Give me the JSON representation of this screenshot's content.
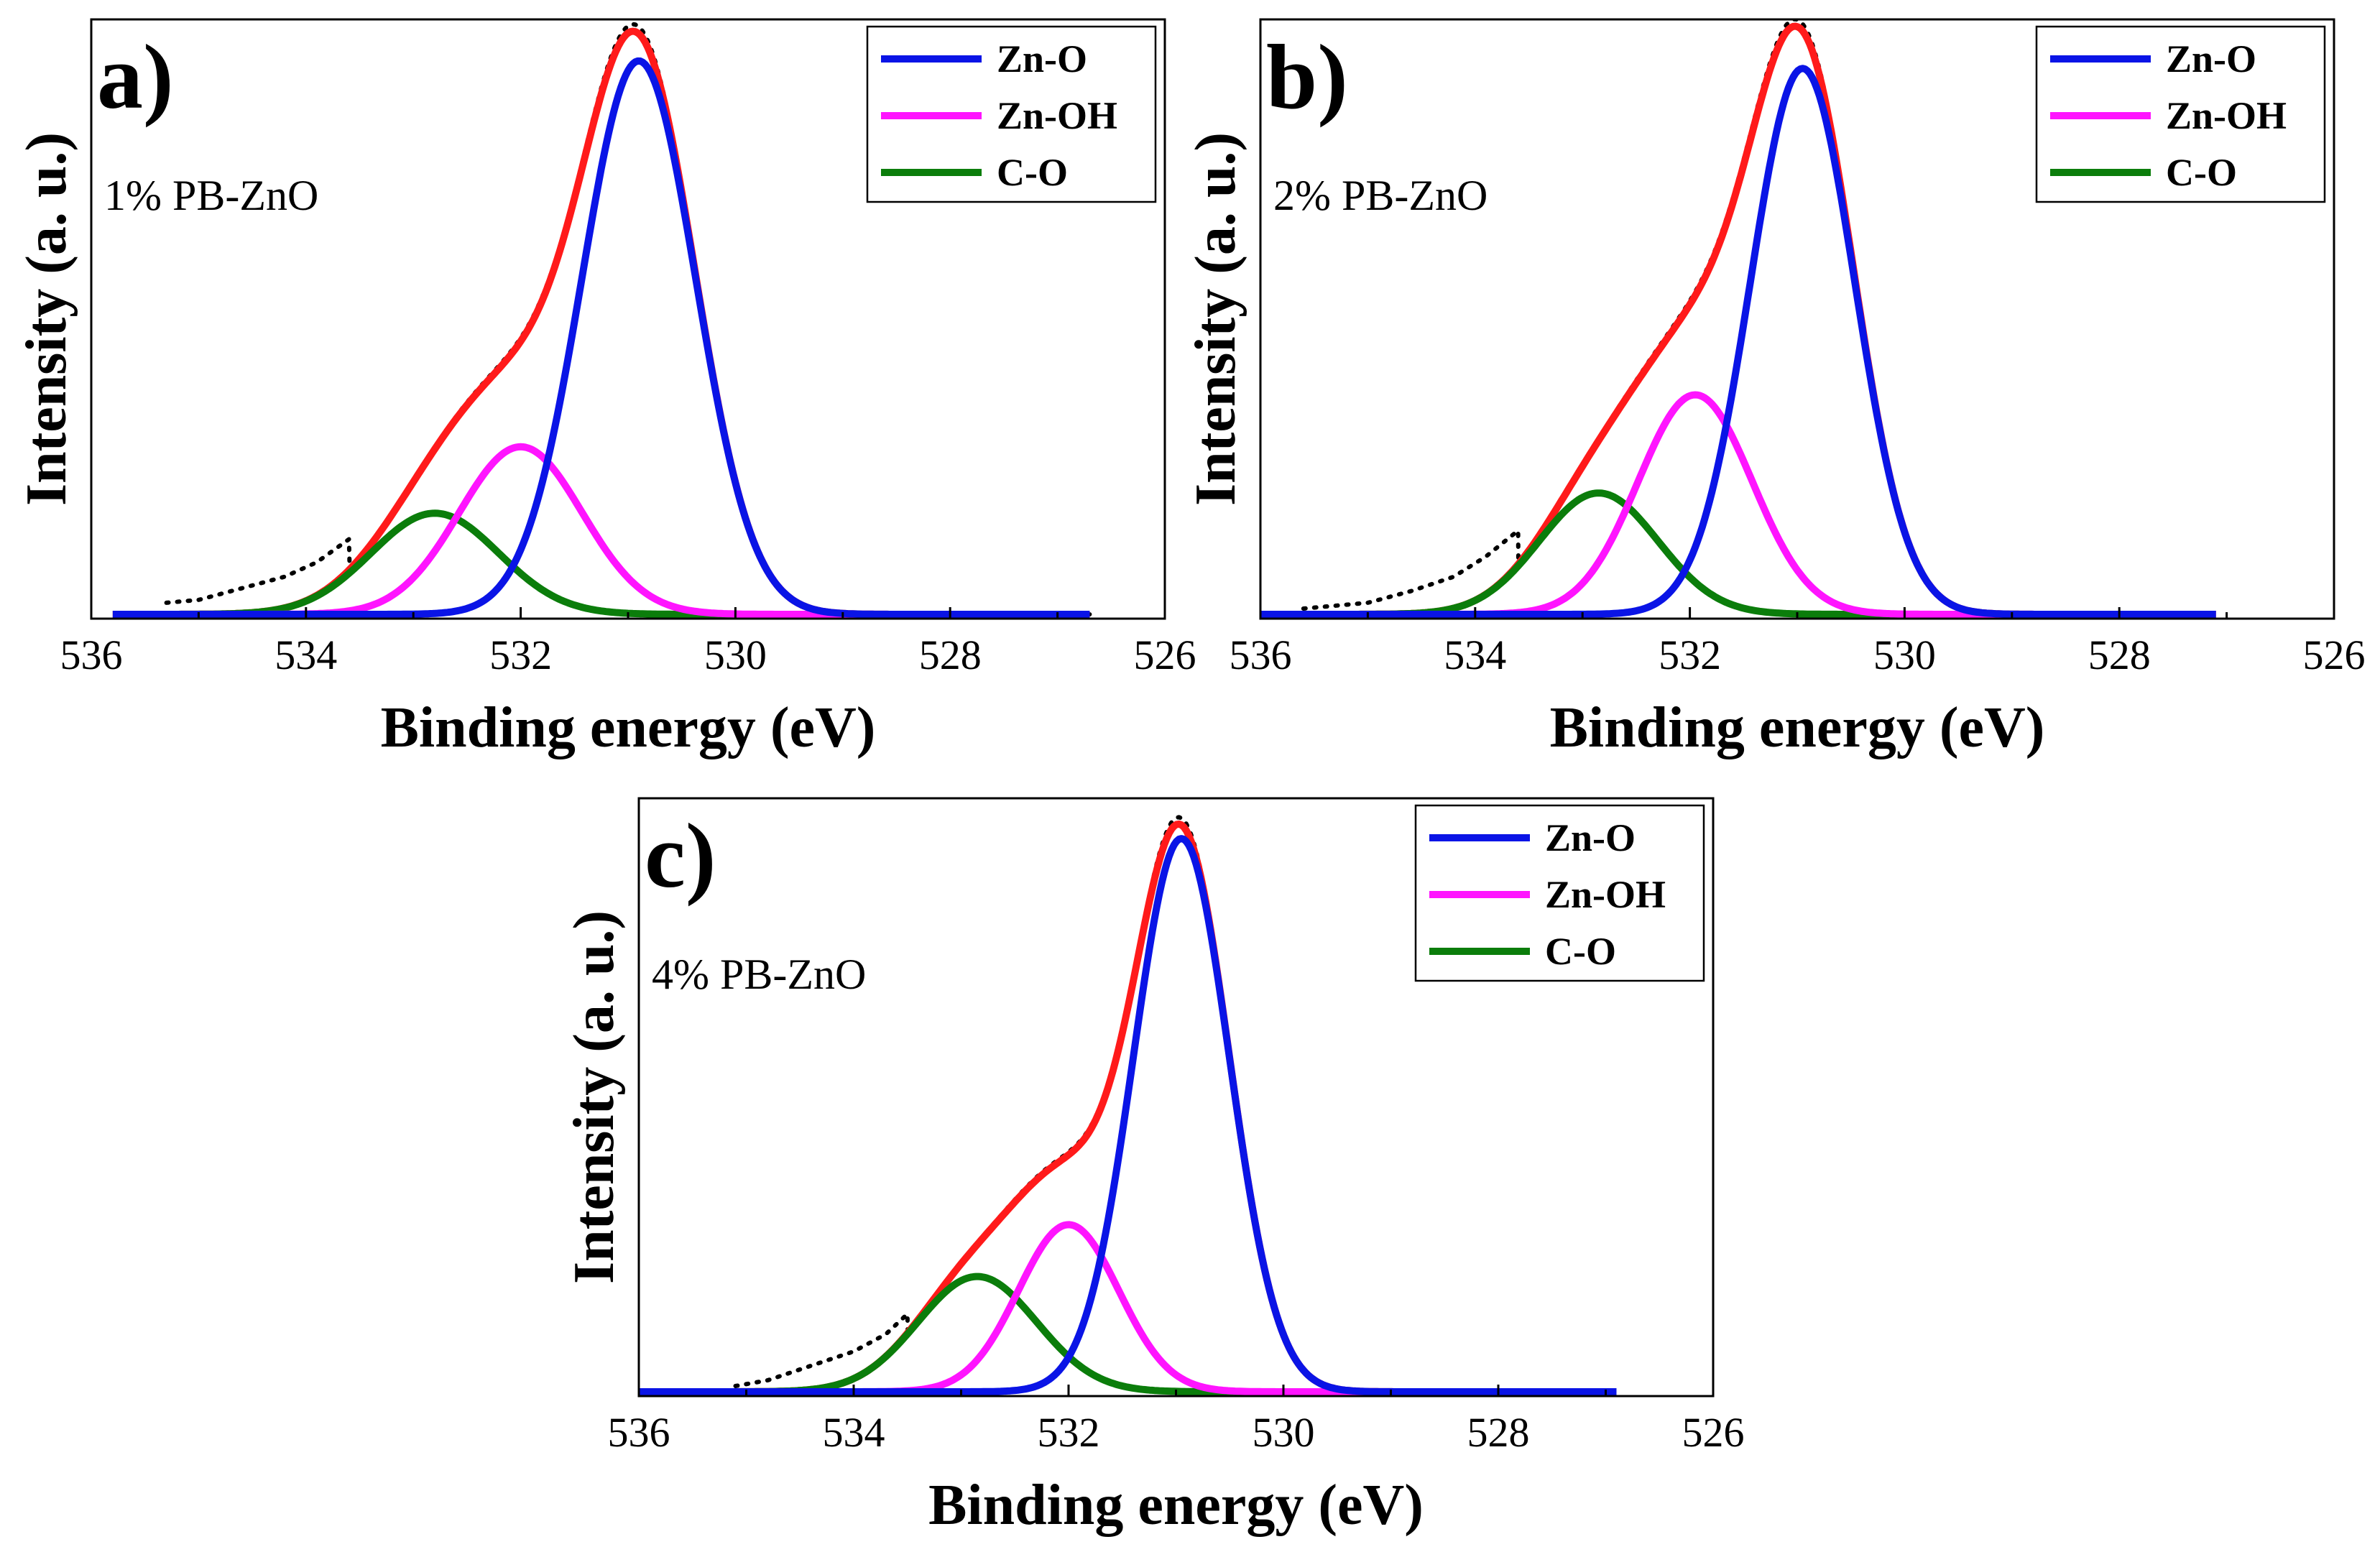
{
  "colors": {
    "zn_o": "#0a14e6",
    "zn_oh": "#ff14ff",
    "c_o": "#0b7d0b",
    "envelope": "#ff1a1a",
    "raw": "#000000"
  },
  "chart_data": [
    {
      "type": "line",
      "panel_letter": "a)",
      "sample_label": "1% PB-ZnO",
      "xlabel": "Binding energy (eV)",
      "ylabel": "Intensity (a. u.)",
      "xlim": [
        536,
        526
      ],
      "x_ticks": [
        "536",
        "534",
        "532",
        "530",
        "528",
        "526"
      ],
      "x_range_data": [
        535.8,
        526.7
      ],
      "legend": [
        "Zn-O",
        "Zn-OH",
        "C-O"
      ],
      "series": [
        {
          "name": "Zn-O",
          "center": 530.9,
          "height": 0.958,
          "fwhm": 1.25
        },
        {
          "name": "Zn-OH",
          "center": 532.0,
          "height": 0.29,
          "fwhm": 1.35
        },
        {
          "name": "C-O",
          "center": 532.8,
          "height": 0.175,
          "fwhm": 1.4
        }
      ],
      "raw_tail": [
        [
          535.3,
          0.02
        ],
        [
          535.0,
          0.025
        ],
        [
          534.6,
          0.045
        ],
        [
          534.2,
          0.065
        ],
        [
          533.9,
          0.09
        ],
        [
          533.6,
          0.13
        ]
      ]
    },
    {
      "type": "line",
      "panel_letter": "b)",
      "sample_label": "2% PB-ZnO",
      "xlabel": "Binding energy (eV)",
      "ylabel": "Intensity (a. u.)",
      "xlim": [
        536,
        526
      ],
      "x_ticks": [
        "536",
        "534",
        "532",
        "530",
        "528",
        "526"
      ],
      "x_range_data": [
        536.0,
        527.1
      ],
      "legend": [
        "Zn-O",
        "Zn-OH",
        "C-O"
      ],
      "series": [
        {
          "name": "Zn-O",
          "center": 530.95,
          "height": 0.945,
          "fwhm": 1.15
        },
        {
          "name": "Zn-OH",
          "center": 531.95,
          "height": 0.38,
          "fwhm": 1.25
        },
        {
          "name": "C-O",
          "center": 532.85,
          "height": 0.21,
          "fwhm": 1.3
        }
      ],
      "raw_tail": [
        [
          535.6,
          0.01
        ],
        [
          535.0,
          0.02
        ],
        [
          534.6,
          0.04
        ],
        [
          534.2,
          0.065
        ],
        [
          533.9,
          0.1
        ],
        [
          533.6,
          0.145
        ]
      ]
    },
    {
      "type": "line",
      "panel_letter": "c)",
      "sample_label": "4% PB-ZnO",
      "xlabel": "Binding energy (eV)",
      "ylabel": "Intensity (a. u.)",
      "xlim": [
        536,
        526
      ],
      "x_ticks": [
        "536",
        "534",
        "532",
        "530",
        "528",
        "526"
      ],
      "x_range_data": [
        536.0,
        526.9
      ],
      "legend": [
        "Zn-O",
        "Zn-OH",
        "C-O"
      ],
      "series": [
        {
          "name": "Zn-O",
          "center": 530.95,
          "height": 0.96,
          "fwhm": 1.05
        },
        {
          "name": "Zn-OH",
          "center": 532.0,
          "height": 0.29,
          "fwhm": 1.1
        },
        {
          "name": "C-O",
          "center": 532.85,
          "height": 0.2,
          "fwhm": 1.3
        }
      ],
      "raw_tail": [
        [
          535.1,
          0.01
        ],
        [
          534.8,
          0.02
        ],
        [
          534.4,
          0.045
        ],
        [
          534.0,
          0.07
        ],
        [
          533.7,
          0.1
        ],
        [
          533.5,
          0.135
        ]
      ]
    }
  ]
}
